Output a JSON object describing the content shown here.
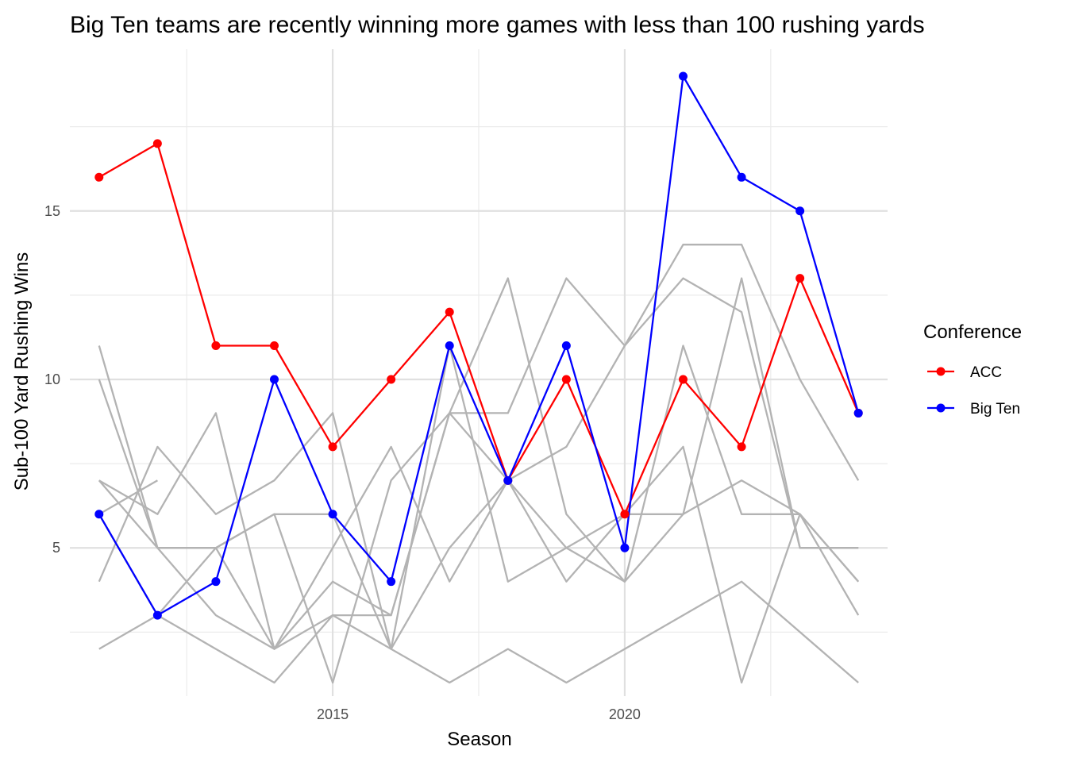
{
  "chart_data": {
    "type": "line",
    "title": "Big Ten teams are recently winning more games with less than 100 rushing yards",
    "xlabel": "Season",
    "ylabel": "Sub-100 Yard Rushing Wins",
    "x_ticks": [
      2015,
      2020
    ],
    "y_ticks": [
      5,
      10,
      15
    ],
    "xlim": [
      2010.5,
      2024.5
    ],
    "ylim": [
      0.6,
      19.8
    ],
    "grid": true,
    "legend": {
      "title": "Conference",
      "position": "right",
      "entries": [
        "ACC",
        "Big Ten"
      ]
    },
    "colors": {
      "ACC": "#ff0000",
      "Big Ten": "#0000ff",
      "other": "#b3b3b3"
    },
    "series": [
      {
        "name": "ACC",
        "highlight": true,
        "x": [
          2011,
          2012,
          2013,
          2014,
          2015,
          2016,
          2017,
          2018,
          2019,
          2020,
          2021,
          2022,
          2023,
          2024
        ],
        "values": [
          16,
          17,
          11,
          11,
          8,
          10,
          12,
          7,
          10,
          6,
          10,
          8,
          13,
          9
        ]
      },
      {
        "name": "Big Ten",
        "highlight": true,
        "x": [
          2011,
          2012,
          2013,
          2014,
          2015,
          2016,
          2017,
          2018,
          2019,
          2020,
          2021,
          2022,
          2023,
          2024
        ],
        "values": [
          6,
          3,
          4,
          10,
          6,
          4,
          11,
          7,
          11,
          5,
          19,
          16,
          15,
          9
        ]
      }
    ],
    "background_series": [
      {
        "x": [
          2011,
          2012,
          2013,
          2014,
          2015,
          2016,
          2017,
          2018,
          2019,
          2020,
          2021,
          2022,
          2023,
          2024
        ],
        "values": [
          11,
          5,
          5,
          2,
          4,
          3,
          9,
          13,
          6,
          4,
          11,
          6,
          6,
          4
        ]
      },
      {
        "x": [
          2011,
          2012,
          2013,
          2014,
          2015,
          2016,
          2017,
          2018,
          2019,
          2020,
          2021,
          2022,
          2023,
          2024
        ],
        "values": [
          10,
          5,
          5,
          6,
          6,
          2,
          11,
          4,
          5,
          4,
          6,
          13,
          5,
          5
        ]
      },
      {
        "x": [
          2011,
          2012,
          2013,
          2014,
          2015,
          2016,
          2017,
          2018,
          2019,
          2020,
          2021,
          2022,
          2023,
          2024
        ],
        "values": [
          7,
          6,
          9,
          2,
          5,
          8,
          4,
          7,
          5,
          6,
          6,
          7,
          6,
          4
        ]
      },
      {
        "x": [
          2011,
          2012,
          2013,
          2014,
          2015,
          2016,
          2017,
          2018,
          2019,
          2020,
          2021,
          2022,
          2023,
          2024
        ],
        "values": [
          7,
          5,
          3,
          2,
          3,
          3,
          9,
          9,
          13,
          11,
          14,
          14,
          10,
          7
        ]
      },
      {
        "x": [
          2011,
          2012,
          2013,
          2014,
          2015,
          2016,
          2017,
          2018,
          2019,
          2020,
          2021,
          2022,
          2023,
          2024
        ],
        "values": [
          4,
          8,
          6,
          7,
          9,
          2,
          1,
          2,
          1,
          2,
          3,
          4,
          2.5,
          1
        ]
      },
      {
        "x": [
          2011,
          2012,
          2013,
          2014,
          2015,
          2016,
          2017,
          2018,
          2019,
          2020,
          2021,
          2022,
          2023,
          2024
        ],
        "values": [
          2,
          3,
          2,
          1,
          3,
          2,
          5,
          7,
          8,
          11,
          13,
          12,
          5,
          5
        ]
      },
      {
        "x": [
          2011,
          2012,
          2013,
          2014,
          2015,
          2016,
          2017,
          2018,
          2019,
          2020,
          2021,
          2022,
          2023,
          2024
        ],
        "values": [
          6,
          3,
          5,
          6,
          1,
          7,
          9,
          7,
          4,
          6,
          8,
          1,
          6,
          3
        ]
      },
      {
        "x": [
          2011,
          2012
        ],
        "values": [
          6,
          7
        ]
      }
    ]
  }
}
